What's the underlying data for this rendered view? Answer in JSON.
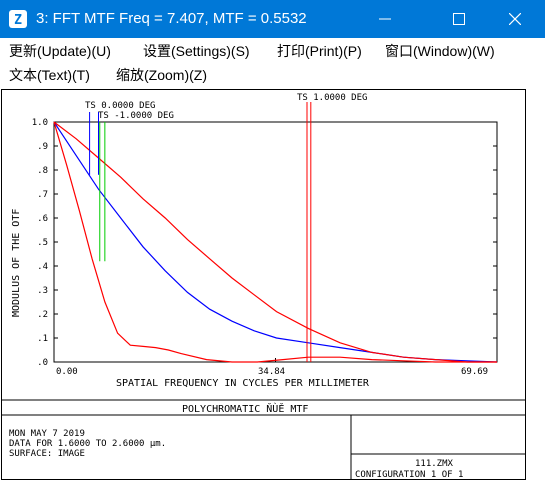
{
  "window": {
    "title": "3: FFT MTF Freq = 7.407, MTF = 0.5532",
    "icon": "zemax-app-icon",
    "controls": [
      "minimize-icon",
      "maximize-icon",
      "close-icon"
    ]
  },
  "menu": {
    "update": "更新(Update)(U)",
    "settings": "设置(Settings)(S)",
    "print": "打印(Print)(P)",
    "window": "窗口(Window)(W)",
    "text": "文本(Text)(T)",
    "zoom": "缩放(Zoom)(Z)"
  },
  "plot": {
    "annotations": {
      "ts0": "TS 0.0000 DEG",
      "ts_neg1": "TS -1.0000 DEG",
      "ts1": "TS 1.0000 DEG"
    },
    "colors": {
      "ts0": "#0000ff",
      "ts_neg1": "#00cc00",
      "ts1": "#ff0000",
      "frame": "#000000"
    },
    "footer": {
      "caption": "POLYCHROMATIC ŇÙĚ  MTF",
      "date": "MON MAY 7 2019",
      "data_for": "DATA FOR 1.6000 TO 2.6000 μm.",
      "surface": "SURFACE: IMAGE",
      "file": "111.ZMX",
      "configuration": "CONFIGURATION 1 OF 1"
    }
  },
  "chart_data": {
    "type": "line",
    "title": "",
    "xlabel": "SPATIAL FREQUENCY IN CYCLES PER MILLIMETER",
    "ylabel": "MODULUS OF THE OTF",
    "xlim": [
      0,
      69.69
    ],
    "ylim": [
      0,
      1.0
    ],
    "x_ticks": [
      "0.00",
      "34.84",
      "69.69"
    ],
    "y_ticks": [
      ".0",
      ".1",
      ".2",
      ".3",
      ".4",
      ".5",
      ".6",
      ".7",
      ".8",
      ".9",
      "1.0"
    ],
    "y_tick_values": [
      0,
      0.1,
      0.2,
      0.3,
      0.4,
      0.5,
      0.6,
      0.7,
      0.8,
      0.9,
      1.0
    ],
    "series": [
      {
        "name": "TS 0.0000 DEG",
        "color": "#0000ff",
        "x": [
          0,
          3.5,
          7,
          10.5,
          14,
          17.5,
          21,
          24.5,
          28,
          31.5,
          35,
          40,
          45,
          50,
          55,
          60,
          65,
          69.69
        ],
        "y": [
          1.0,
          0.86,
          0.72,
          0.6,
          0.48,
          0.38,
          0.29,
          0.22,
          0.17,
          0.13,
          0.1,
          0.08,
          0.06,
          0.04,
          0.02,
          0.01,
          0.005,
          0.0
        ]
      },
      {
        "name": "TS 1.0000 DEG (T)",
        "color": "#ff0000",
        "x": [
          0,
          3.5,
          7,
          10.5,
          14,
          17.5,
          21,
          24.5,
          28,
          31.5,
          35,
          40,
          45,
          50,
          55,
          60,
          65,
          69.69
        ],
        "y": [
          1.0,
          0.93,
          0.85,
          0.77,
          0.68,
          0.6,
          0.51,
          0.43,
          0.35,
          0.28,
          0.21,
          0.14,
          0.08,
          0.04,
          0.02,
          0.01,
          0.0,
          0.0
        ]
      },
      {
        "name": "TS 1.0000 DEG (S)",
        "color": "#ff0000",
        "x": [
          0,
          2,
          4,
          6,
          8,
          10,
          12,
          14,
          16,
          18,
          20,
          24,
          28,
          32,
          36,
          40,
          45,
          50,
          55,
          60,
          69.69
        ],
        "y": [
          1.0,
          0.82,
          0.63,
          0.43,
          0.25,
          0.12,
          0.07,
          0.065,
          0.06,
          0.05,
          0.035,
          0.01,
          0.0,
          0.0,
          0.01,
          0.02,
          0.02,
          0.01,
          0.005,
          0.0,
          0.0
        ]
      }
    ],
    "markers": [
      {
        "name": "TS 0.0000 DEG",
        "color": "#0000ff",
        "x": [
          5.6,
          7.0
        ]
      },
      {
        "name": "TS -1.0000 DEG",
        "color": "#00cc00",
        "x": [
          7.2,
          8.0
        ]
      },
      {
        "name": "TS 1.0000 DEG",
        "color": "#ff0000",
        "x": [
          39.8,
          40.4
        ]
      }
    ],
    "grid": false,
    "legend": "top annotations"
  }
}
